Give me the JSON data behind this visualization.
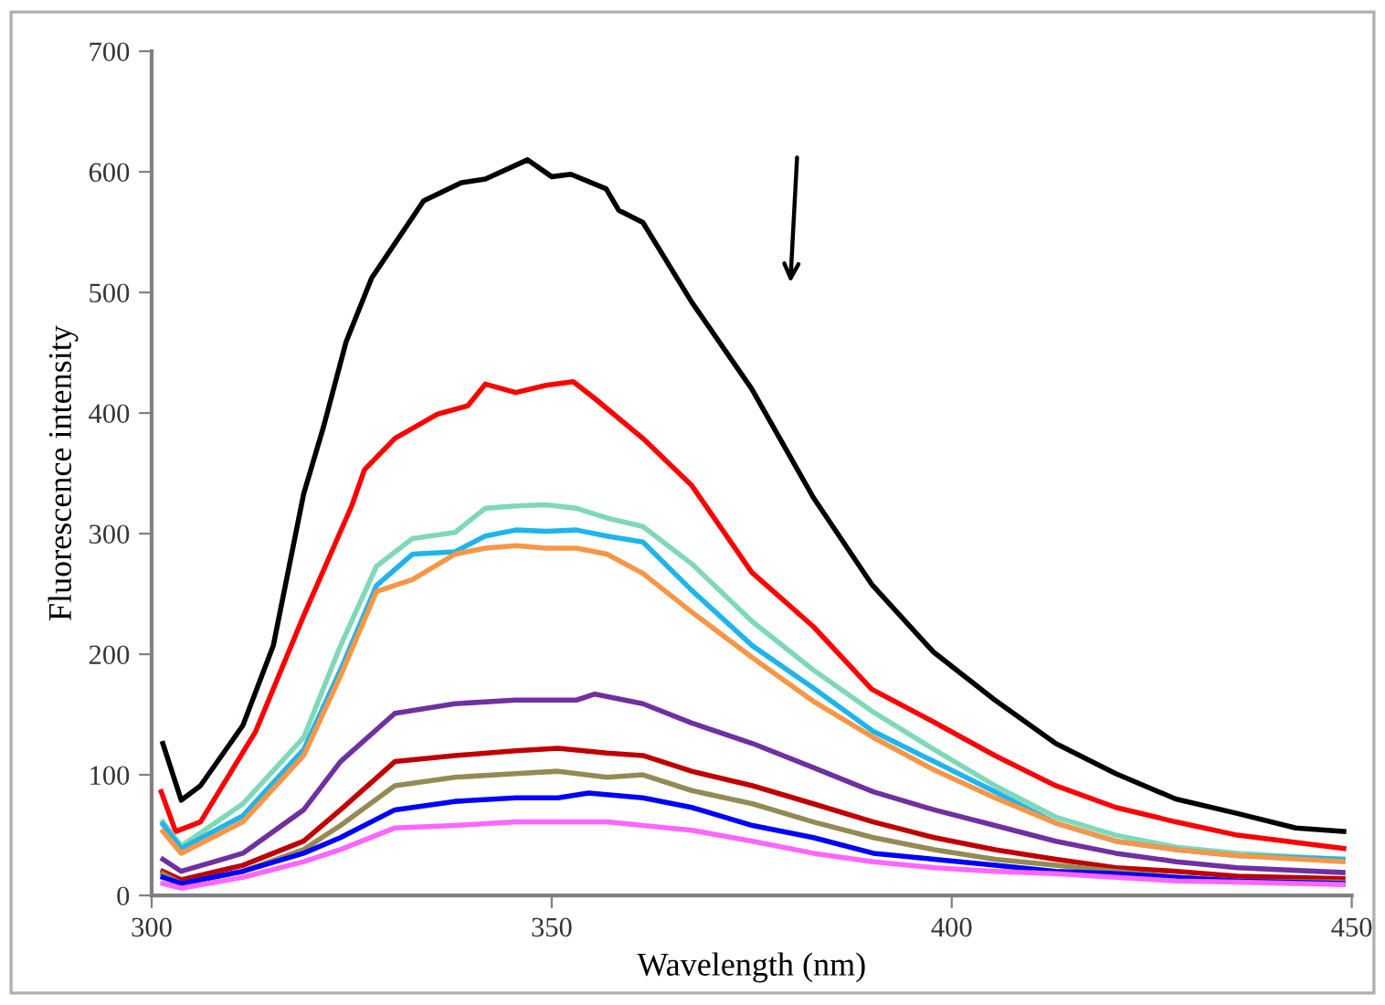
{
  "chart_data": {
    "type": "line",
    "xlabel": "Wavelength (nm)",
    "ylabel": "Fluorescence intensity",
    "xlim": [
      300,
      450
    ],
    "xticks": [
      300,
      350,
      400,
      450
    ],
    "ylim": [
      0,
      700
    ],
    "yticks": [
      0,
      100,
      200,
      300,
      400,
      500,
      600,
      700
    ],
    "grid": false,
    "marker": "none",
    "line_style": "solid",
    "series": [
      {
        "color": "#000000",
        "x": [
          301.4,
          303.7,
          306.1,
          311.4,
          315.2,
          319,
          321.5,
          324.3,
          327.5,
          334,
          338.7,
          341.7,
          347,
          350,
          352.4,
          356.8,
          358.4,
          361.4,
          367.5,
          375,
          382.7,
          390,
          397.7,
          405.4,
          413,
          420.5,
          428,
          435.7,
          443,
          449
        ],
        "values": [
          126,
          79,
          91,
          141,
          207,
          333,
          389,
          459,
          512,
          576,
          591,
          594,
          610,
          596,
          598,
          586,
          568,
          558,
          492,
          420,
          330,
          258,
          202,
          162,
          126,
          101,
          80,
          68,
          56,
          53
        ]
      },
      {
        "color": "#ff0000",
        "x": [
          301.2,
          303,
          306.1,
          313,
          319,
          325,
          326.6,
          330.4,
          335.7,
          339.5,
          341.7,
          345.5,
          349.3,
          352.7,
          355.4,
          361.4,
          367.5,
          375,
          382.7,
          390,
          397.7,
          405.4,
          413,
          420.5,
          428,
          435.7,
          449
        ],
        "values": [
          86,
          53,
          61,
          136,
          232,
          323,
          353,
          379,
          399,
          406,
          424,
          417,
          423,
          426,
          412,
          379,
          340,
          268,
          223,
          171,
          144,
          116,
          91,
          73,
          61,
          50,
          39
        ]
      },
      {
        "color": "#7fd8b8",
        "x": [
          301.4,
          303.7,
          311.4,
          319,
          323.6,
          328.1,
          332.6,
          337.9,
          341.7,
          345.5,
          349.3,
          353.1,
          356.9,
          361.4,
          367.5,
          375.1,
          382.7,
          390.2,
          397.8,
          405.4,
          413,
          420.5,
          428.1,
          435.7,
          448.9
        ],
        "values": [
          61,
          41,
          76,
          131,
          207,
          273,
          296,
          301,
          321,
          323,
          324,
          321,
          313,
          306,
          275,
          227,
          187,
          152,
          121,
          91,
          65,
          50,
          40,
          35,
          30
        ]
      },
      {
        "color": "#1fb4ec",
        "x": [
          301.4,
          303.7,
          311.4,
          319,
          323.6,
          328.1,
          332.6,
          337.9,
          341.7,
          345.5,
          349.3,
          353.1,
          356.9,
          361.4,
          367.5,
          375.1,
          382.7,
          390.2,
          397.8,
          405.4,
          413,
          420.5,
          428.1,
          435.7,
          448.9
        ],
        "values": [
          59,
          39,
          66,
          121,
          187,
          257,
          283,
          285,
          298,
          303,
          302,
          303,
          298,
          293,
          253,
          207,
          172,
          136,
          111,
          86,
          60,
          45,
          38,
          33,
          30
        ]
      },
      {
        "color": "#f79646",
        "x": [
          301.4,
          303.7,
          311.4,
          319,
          323.6,
          328.1,
          332.6,
          337.9,
          341.7,
          345.5,
          349.3,
          353.1,
          356.9,
          361.4,
          367.5,
          375.1,
          382.7,
          390.2,
          397.8,
          405.4,
          413,
          420.5,
          428.1,
          435.7,
          448.9
        ],
        "values": [
          53,
          35,
          61,
          116,
          182,
          252,
          262,
          283,
          288,
          290,
          288,
          288,
          283,
          267,
          235,
          197,
          161,
          131,
          104,
          81,
          60,
          45,
          38,
          33,
          28
        ]
      },
      {
        "color": "#7030a0",
        "x": [
          301.4,
          303.7,
          311.4,
          319,
          323.6,
          330.4,
          337.9,
          345.5,
          353.1,
          355.4,
          361.4,
          367.5,
          375.1,
          382.7,
          390.2,
          397.8,
          405.4,
          413,
          420.5,
          428.1,
          435.7,
          448.9
        ],
        "values": [
          30,
          20,
          35,
          71,
          111,
          151,
          159,
          162,
          162,
          167,
          159,
          143,
          126,
          106,
          86,
          71,
          58,
          45,
          35,
          28,
          23,
          19
        ]
      },
      {
        "color": "#c00000",
        "x": [
          301.4,
          303.7,
          311.4,
          319,
          323.6,
          330.4,
          337.9,
          345.5,
          350.8,
          356.9,
          361.4,
          367.5,
          375.1,
          382.7,
          390.2,
          397.8,
          405.4,
          413,
          420.5,
          428.1,
          435.7,
          448.9
        ],
        "values": [
          20,
          13,
          25,
          45,
          71,
          111,
          116,
          120,
          122,
          118,
          116,
          103,
          91,
          76,
          61,
          48,
          38,
          30,
          23,
          20,
          16,
          14
        ]
      },
      {
        "color": "#948a54",
        "x": [
          301.4,
          303.7,
          311.4,
          319,
          323.6,
          330.4,
          337.9,
          345.5,
          350.8,
          356.9,
          361.4,
          367.5,
          375.1,
          382.7,
          390.2,
          397.8,
          405.4,
          413,
          420.5,
          428.1,
          435.7,
          448.9
        ],
        "values": [
          18,
          10,
          20,
          38,
          58,
          91,
          98,
          101,
          103,
          98,
          100,
          87,
          76,
          61,
          48,
          38,
          30,
          25,
          20,
          15,
          12,
          11
        ]
      },
      {
        "color": "#0000ff",
        "x": [
          301.4,
          303.7,
          311.4,
          319,
          323.6,
          330.4,
          337.9,
          345.5,
          350.8,
          354.6,
          361.4,
          367.5,
          375.1,
          382.7,
          390.2,
          397.8,
          405.4,
          413,
          420.5,
          428.1,
          435.7,
          448.9
        ],
        "values": [
          15,
          10,
          20,
          35,
          48,
          71,
          78,
          81,
          81,
          85,
          81,
          73,
          58,
          48,
          35,
          30,
          25,
          20,
          18,
          15,
          12,
          10
        ]
      },
      {
        "color": "#ff66ff",
        "x": [
          301.4,
          303.7,
          311.4,
          319,
          323.6,
          330.4,
          337.9,
          345.5,
          350.8,
          356.9,
          361.4,
          367.5,
          375.1,
          382.7,
          390.2,
          397.8,
          405.4,
          413,
          420.5,
          428.1,
          435.7,
          448.9
        ],
        "values": [
          10,
          6,
          15,
          28,
          38,
          56,
          58,
          61,
          61,
          61,
          58,
          54,
          45,
          35,
          28,
          23,
          20,
          18,
          15,
          12,
          11,
          9
        ]
      }
    ]
  }
}
